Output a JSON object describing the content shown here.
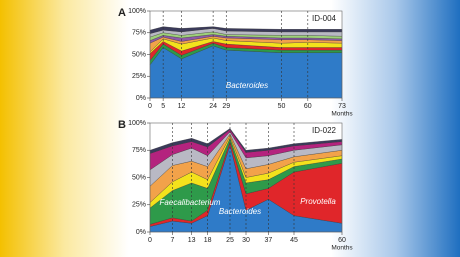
{
  "chart_data": [
    {
      "type": "stacked-area",
      "panel": "A",
      "id_label": "ID-004",
      "xlabel": "Months",
      "x": [
        0,
        5,
        12,
        24,
        29,
        50,
        60,
        73
      ],
      "xlim": [
        0,
        73
      ],
      "xticks": [
        0,
        5,
        12,
        24,
        29,
        50,
        60,
        73
      ],
      "vlines": true,
      "ylim": [
        0,
        100
      ],
      "yticks": [
        {
          "value": 0,
          "label": "0%"
        },
        {
          "value": 25,
          "label": "25%"
        },
        {
          "value": 50,
          "label": "50%"
        },
        {
          "value": 75,
          "label": "75%"
        },
        {
          "value": 100,
          "label": "100%"
        }
      ],
      "series": [
        {
          "name": "Bacteroides",
          "color": "#2f7bc8",
          "values": [
            38,
            58,
            45,
            60,
            55,
            52,
            52,
            52
          ]
        },
        {
          "color": "#2e9a4a",
          "values": [
            5,
            4,
            4,
            3,
            3,
            3,
            3,
            3
          ]
        },
        {
          "color": "#e0262a",
          "values": [
            8,
            3,
            5,
            2,
            4,
            3,
            3,
            3
          ]
        },
        {
          "color": "#f3e21c",
          "values": [
            2,
            3,
            8,
            4,
            4,
            5,
            6,
            5
          ]
        },
        {
          "color": "#f2a24a",
          "values": [
            10,
            2,
            3,
            2,
            3,
            4,
            3,
            3
          ]
        },
        {
          "color": "#8e5aa8",
          "values": [
            3,
            2,
            4,
            2,
            2,
            2,
            2,
            2
          ]
        },
        {
          "color": "#9fd17a",
          "values": [
            4,
            3,
            3,
            3,
            2,
            3,
            3,
            3
          ]
        },
        {
          "color": "#b9b9c4",
          "values": [
            4,
            3,
            4,
            4,
            4,
            4,
            4,
            5
          ]
        },
        {
          "color": "#3a3a5a",
          "values": [
            4,
            4,
            4,
            2,
            3,
            3,
            3,
            3
          ]
        }
      ]
    },
    {
      "type": "stacked-area",
      "panel": "B",
      "id_label": "ID-022",
      "xlabel": "Months",
      "x": [
        0,
        7,
        13,
        18,
        25,
        30,
        37,
        45,
        60
      ],
      "xlim": [
        0,
        60
      ],
      "xticks": [
        0,
        7,
        13,
        18,
        25,
        30,
        37,
        45,
        60
      ],
      "vlines": true,
      "ylim": [
        0,
        100
      ],
      "yticks": [
        {
          "value": 0,
          "label": "0%"
        },
        {
          "value": 25,
          "label": "25%"
        },
        {
          "value": 50,
          "label": "50%"
        },
        {
          "value": 75,
          "label": "75%"
        },
        {
          "value": 100,
          "label": "100%"
        }
      ],
      "series": [
        {
          "name": "Bacteroides",
          "color": "#2f7bc8",
          "values": [
            5,
            10,
            8,
            15,
            80,
            20,
            30,
            15,
            8
          ]
        },
        {
          "name": "Provotella",
          "color": "#e0262a",
          "values": [
            2,
            3,
            2,
            5,
            3,
            15,
            10,
            40,
            55
          ]
        },
        {
          "name": "Faecalibacterium",
          "color": "#2e9a4a",
          "values": [
            15,
            25,
            35,
            20,
            3,
            10,
            8,
            5,
            4
          ]
        },
        {
          "color": "#f3e21c",
          "values": [
            5,
            8,
            10,
            8,
            2,
            5,
            6,
            4,
            3
          ]
        },
        {
          "color": "#f2a24a",
          "values": [
            15,
            15,
            10,
            12,
            2,
            8,
            8,
            5,
            5
          ]
        },
        {
          "color": "#b9b9c4",
          "values": [
            15,
            10,
            12,
            10,
            2,
            10,
            8,
            6,
            5
          ]
        },
        {
          "color": "#b4237e",
          "values": [
            15,
            8,
            6,
            8,
            2,
            5,
            5,
            4,
            3
          ]
        },
        {
          "color": "#3a3a5a",
          "values": [
            3,
            3,
            3,
            3,
            1,
            2,
            2,
            2,
            2
          ]
        }
      ]
    }
  ]
}
